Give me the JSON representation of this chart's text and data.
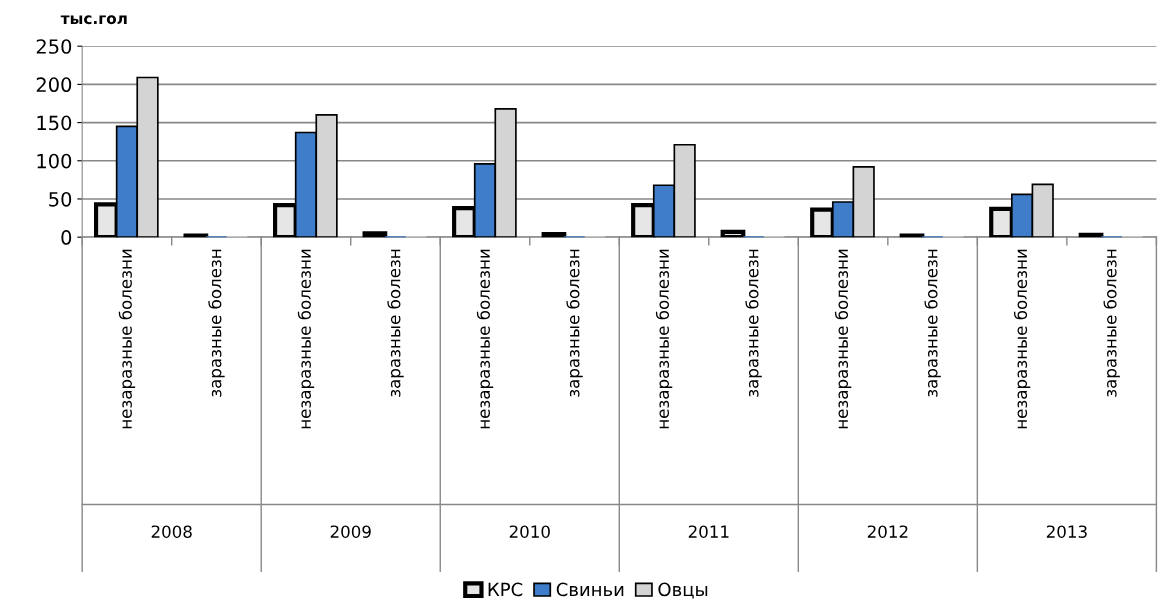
{
  "chart_data": {
    "type": "bar",
    "ylabel": "тыс.гол",
    "categories": [
      "незаразные болезни",
      "заразные болезн",
      "незаразные болезни",
      "заразные болезн",
      "незаразные болезни",
      "заразные болезн",
      "незаразные болезни",
      "заразные болезн",
      "незаразные болезни",
      "заразные болезн",
      "незаразные болезни",
      "заразные болезн"
    ],
    "annotations": [
      "2008",
      "2009",
      "2010",
      "2011",
      "2012",
      "2013"
    ],
    "series": [
      {
        "name": "КРС",
        "color": "#e6e6e6",
        "values": [
          43,
          2,
          42,
          5,
          38,
          4,
          42,
          7,
          36,
          2,
          37,
          3
        ]
      },
      {
        "name": "Свиньи",
        "color": "#3f7cc9",
        "values": [
          145,
          0,
          137,
          0,
          96,
          0,
          68,
          0,
          46,
          0,
          56,
          0
        ]
      },
      {
        "name": "Овцы",
        "color": "#d4d4d4",
        "values": [
          209,
          0,
          160,
          0,
          168,
          0,
          121,
          0,
          92,
          0,
          69,
          0
        ]
      }
    ],
    "ylim": [
      0,
      250
    ],
    "yticks": [
      0,
      50,
      100,
      150,
      200,
      250
    ],
    "grid": "y",
    "legend": "bottom"
  }
}
